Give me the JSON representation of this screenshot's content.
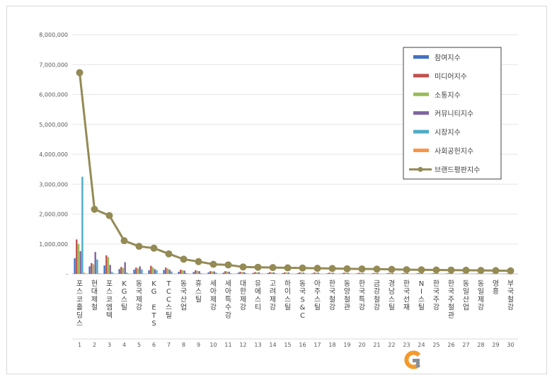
{
  "chart_data": {
    "type": "bar",
    "ylim": [
      0,
      8000000
    ],
    "yticks": [
      "-",
      "1,000,000",
      "2,000,000",
      "3,000,000",
      "4,000,000",
      "5,000,000",
      "6,000,000",
      "7,000,000",
      "8,000,000"
    ],
    "ranks": [
      "1",
      "2",
      "3",
      "4",
      "5",
      "6",
      "7",
      "8",
      "9",
      "10",
      "11",
      "12",
      "13",
      "14",
      "15",
      "16",
      "17",
      "18",
      "19",
      "20",
      "21",
      "22",
      "23",
      "24",
      "25",
      "26",
      "27",
      "28",
      "29",
      "30"
    ],
    "categories": [
      "포스코홀딩스",
      "현대제철",
      "포스코엠텍",
      "KG스틸",
      "동국제강",
      "KG ETS",
      "TCC스틸",
      "동국산업",
      "휴스틸",
      "세아제강",
      "세아특수강",
      "대한제강",
      "유에스티",
      "고려제강",
      "하이스틸",
      "동국S&C",
      "아주스틸",
      "한국철강",
      "동양철관",
      "한국특강",
      "금강철강",
      "경남스틸",
      "한국선재",
      "NI스틸",
      "한국주강",
      "한국주철관",
      "동일산업",
      "동일제강",
      "영흥",
      "부국철강"
    ],
    "series": [
      {
        "name": "참여지수",
        "color": "#4472c4",
        "values": [
          520000,
          250000,
          280000,
          160000,
          140000,
          120000,
          130000,
          70000,
          60000,
          50000,
          40000,
          35000,
          30000,
          28000,
          25000,
          22000,
          20000,
          18000,
          16000,
          15000,
          14000,
          13000,
          12000,
          11000,
          10000,
          9000,
          8000,
          7000,
          6000,
          5000
        ]
      },
      {
        "name": "미디어지수",
        "color": "#c0504d",
        "values": [
          1150000,
          360000,
          620000,
          230000,
          210000,
          270000,
          210000,
          140000,
          120000,
          90000,
          90000,
          70000,
          60000,
          60000,
          50000,
          50000,
          45000,
          40000,
          40000,
          35000,
          30000,
          30000,
          28000,
          25000,
          22000,
          20000,
          18000,
          16000,
          14000,
          12000
        ]
      },
      {
        "name": "소통지수",
        "color": "#9bbb59",
        "values": [
          1000000,
          320000,
          560000,
          200000,
          180000,
          220000,
          180000,
          120000,
          100000,
          80000,
          80000,
          60000,
          50000,
          50000,
          45000,
          45000,
          40000,
          35000,
          35000,
          30000,
          28000,
          26000,
          24000,
          22000,
          20000,
          18000,
          16000,
          14000,
          12000,
          10000
        ]
      },
      {
        "name": "커뮤니티지수",
        "color": "#8064a2",
        "values": [
          760000,
          730000,
          300000,
          390000,
          250000,
          160000,
          140000,
          110000,
          90000,
          80000,
          70000,
          60000,
          55000,
          50000,
          45000,
          40000,
          38000,
          35000,
          32000,
          30000,
          28000,
          26000,
          24000,
          22000,
          20000,
          18000,
          16000,
          14000,
          12000,
          10000
        ]
      },
      {
        "name": "시장지수",
        "color": "#4bacc6",
        "values": [
          3250000,
          480000,
          60000,
          40000,
          150000,
          120000,
          80000,
          30000,
          20000,
          40000,
          20000,
          30000,
          15000,
          20000,
          10000,
          15000,
          8000,
          12000,
          10000,
          8000,
          6000,
          5000,
          5000,
          4000,
          4000,
          3000,
          3000,
          2000,
          2000,
          2000
        ]
      },
      {
        "name": "사회공헌지수",
        "color": "#f79646",
        "values": [
          40000,
          20000,
          20000,
          15000,
          10000,
          10000,
          8000,
          8000,
          6000,
          6000,
          5000,
          5000,
          4000,
          4000,
          4000,
          3000,
          3000,
          3000,
          3000,
          2000,
          2000,
          2000,
          2000,
          2000,
          2000,
          1000,
          1000,
          1000,
          1000,
          1000
        ]
      }
    ],
    "line": {
      "name": "브랜드평판지수",
      "color": "#948a54",
      "values": [
        6730000,
        2160000,
        1950000,
        1110000,
        920000,
        860000,
        670000,
        490000,
        410000,
        320000,
        300000,
        230000,
        220000,
        210000,
        200000,
        195000,
        185000,
        180000,
        170000,
        165000,
        160000,
        150000,
        140000,
        135000,
        130000,
        125000,
        120000,
        115000,
        110000,
        100000
      ]
    }
  },
  "watermark_icon": "g-logo-icon"
}
